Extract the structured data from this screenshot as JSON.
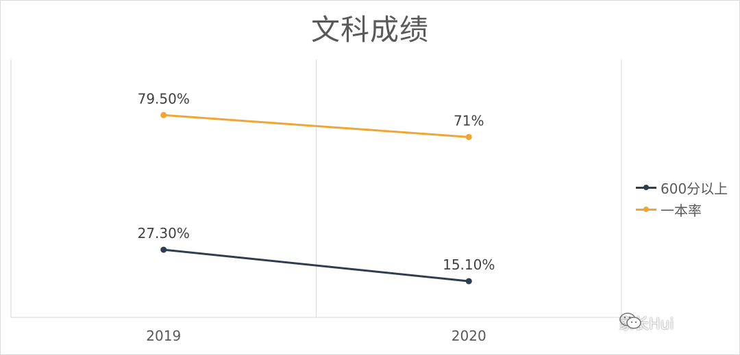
{
  "chart_data": {
    "type": "line",
    "title": "文科成绩",
    "categories": [
      "2019",
      "2020"
    ],
    "series": [
      {
        "name": "600分以上",
        "values": [
          27.3,
          15.1
        ],
        "labels": [
          "27.30%",
          "15.10%"
        ],
        "color": "#2e3d4f"
      },
      {
        "name": "一本率",
        "values": [
          79.5,
          71.0
        ],
        "labels": [
          "79.50%",
          "71%"
        ],
        "color": "#f0a534"
      }
    ],
    "ylim": [
      0,
      100
    ],
    "grid": "vertical",
    "legend": "right"
  },
  "watermark": {
    "text": "家长Hui",
    "icon": "wechat-icon"
  }
}
